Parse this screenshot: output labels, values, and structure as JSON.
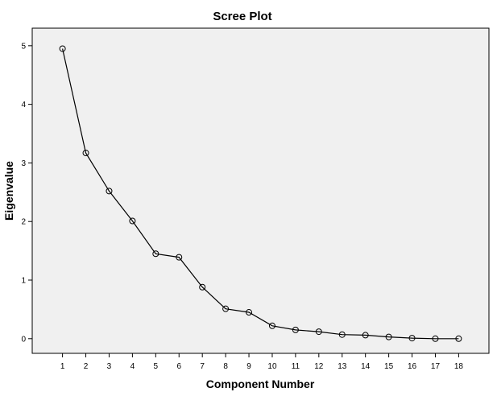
{
  "chart_data": {
    "type": "line",
    "title": "Scree Plot",
    "xlabel": "Component Number",
    "ylabel": "Eigenvalue",
    "x": [
      1,
      2,
      3,
      4,
      5,
      6,
      7,
      8,
      9,
      10,
      11,
      12,
      13,
      14,
      15,
      16,
      17,
      18
    ],
    "x_tick_labels": [
      "1",
      "2",
      "3",
      "4",
      "5",
      "6",
      "7",
      "8",
      "9",
      "10",
      "11",
      "12",
      "13",
      "14",
      "15",
      "16",
      "17",
      "18"
    ],
    "y_tick_labels": [
      "0",
      "1",
      "2",
      "3",
      "4",
      "5"
    ],
    "y_ticks": [
      0,
      1,
      2,
      3,
      4,
      5
    ],
    "values": [
      4.95,
      3.17,
      2.52,
      2.01,
      1.45,
      1.39,
      0.88,
      0.51,
      0.45,
      0.22,
      0.15,
      0.12,
      0.07,
      0.06,
      0.03,
      0.01,
      0.0,
      0.0
    ],
    "xlim": [
      -0.3,
      19.3
    ],
    "ylim": [
      -0.25,
      5.3
    ],
    "marker": "open-circle",
    "grid": false,
    "colors": {
      "plot_background": "#f0f0f0",
      "line": "#000000",
      "frame": "#000000"
    }
  }
}
